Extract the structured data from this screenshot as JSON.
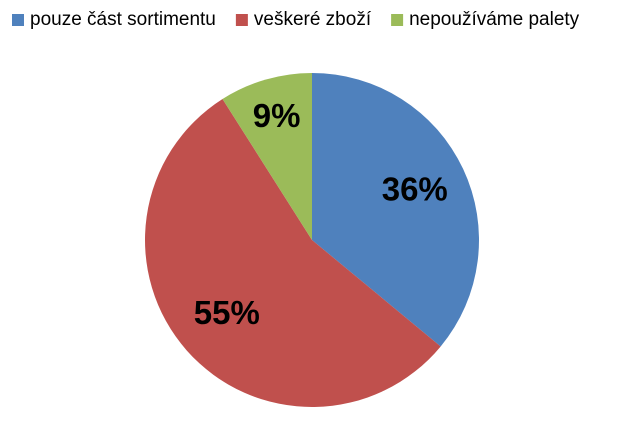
{
  "chart_data": {
    "type": "pie",
    "categories": [
      "pouze část sortimentu",
      "veškeré zboží",
      "nepoužíváme palety"
    ],
    "values": [
      36,
      55,
      9
    ],
    "value_labels": [
      "36%",
      "55%",
      "9%"
    ],
    "colors": [
      "#4f81bd",
      "#c0504d",
      "#9bbb59"
    ],
    "legend": "top"
  }
}
